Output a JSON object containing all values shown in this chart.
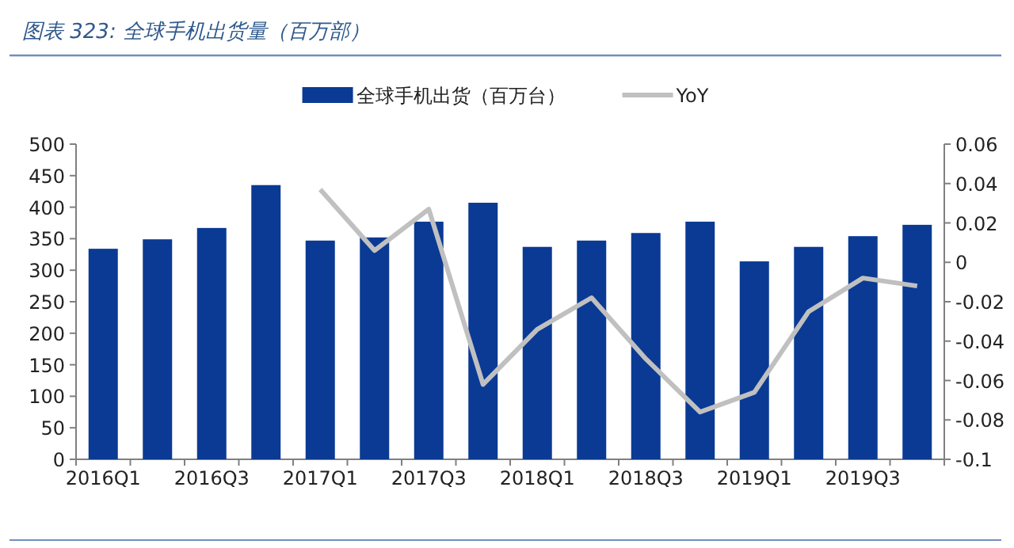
{
  "chart_data": {
    "type": "bar",
    "title": "图表 323:  全球手机出货量（百万部）",
    "categories": [
      "2016Q1",
      null,
      "2016Q3",
      null,
      "2017Q1",
      null,
      "2017Q3",
      null,
      "2018Q1",
      null,
      "2018Q3",
      null,
      "2019Q1",
      null,
      "2019Q3",
      null
    ],
    "series": [
      {
        "name": "全球手机出货（百万台）",
        "color": "#0a3a94",
        "values": [
          334,
          349,
          367,
          435,
          347,
          352,
          377,
          407,
          337,
          347,
          359,
          377,
          314,
          337,
          354,
          372
        ]
      },
      {
        "name": "YoY",
        "type": "line",
        "axis": "y2",
        "color": "#c0c0c0",
        "values": [
          null,
          null,
          null,
          null,
          0.037,
          0.006,
          0.027,
          -0.062,
          -0.034,
          -0.018,
          -0.049,
          -0.076,
          -0.066,
          -0.025,
          -0.008,
          -0.012
        ]
      }
    ],
    "ylim": [
      0,
      500
    ],
    "yticks": [
      0,
      50,
      100,
      150,
      200,
      250,
      300,
      350,
      400,
      450,
      500
    ],
    "y2lim": [
      -0.1,
      0.06
    ],
    "y2ticks": [
      -0.1,
      -0.08,
      -0.06,
      -0.04,
      -0.02,
      0,
      0.02,
      0.04,
      0.06
    ],
    "legend": "top",
    "grid": false,
    "marker": "none",
    "line_style": "solid"
  }
}
